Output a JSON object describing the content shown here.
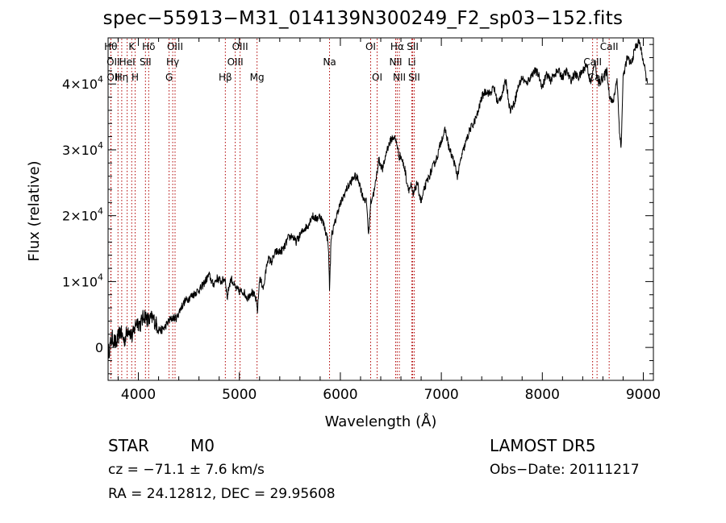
{
  "title": "spec−55913−M31_014139N300249_F2_sp03−152.fits",
  "info": {
    "class": "STAR",
    "subclass": "M0",
    "survey": "LAMOST  DR5",
    "cz": "cz = −71.1 ± 7.6 km/s",
    "obs_date": "Obs−Date: 20111217",
    "radec": "RA =  24.12812, DEC =  29.95608"
  },
  "chart_data": {
    "type": "line",
    "title": "spec−55913−M31_014139N300249_F2_sp03−152.fits",
    "xlabel": "Wavelength (Å)",
    "ylabel": "Flux (relative)",
    "xlim": [
      3700,
      9100
    ],
    "ylim": [
      -5000,
      47000
    ],
    "x_ticks": [
      4000,
      5000,
      6000,
      7000,
      8000,
      9000
    ],
    "x_tick_labels": [
      "4000",
      "5000",
      "6000",
      "7000",
      "8000",
      "9000"
    ],
    "y_ticks": [
      0,
      10000,
      20000,
      30000,
      40000
    ],
    "y_tick_labels": [
      {
        "mant": "0",
        "exp": ""
      },
      {
        "mant": "1×10",
        "exp": "4"
      },
      {
        "mant": "2×10",
        "exp": "4"
      },
      {
        "mant": "3×10",
        "exp": "4"
      },
      {
        "mant": "4×10",
        "exp": "4"
      }
    ],
    "line_color": "#000000",
    "marker_color": "#b00000",
    "series": [
      {
        "x": [
          3700,
          3740,
          3780,
          3820,
          3860,
          3900,
          3940,
          3980,
          4020,
          4060,
          4100,
          4140,
          4180,
          4220,
          4260,
          4300,
          4340,
          4380,
          4420,
          4460,
          4500,
          4540,
          4580,
          4620,
          4660,
          4700,
          4740,
          4780,
          4820,
          4860,
          4880,
          4900,
          4920,
          4960,
          5000,
          5040,
          5080,
          5120,
          5160,
          5180,
          5200,
          5240,
          5280,
          5320,
          5360,
          5400,
          5440,
          5480,
          5520,
          5560,
          5600,
          5640,
          5680,
          5720,
          5760,
          5800,
          5840,
          5880,
          5893,
          5910,
          5940,
          5980,
          6020,
          6060,
          6100,
          6140,
          6180,
          6220,
          6260,
          6280,
          6300,
          6340,
          6380,
          6420,
          6460,
          6500,
          6530,
          6560,
          6580,
          6600,
          6620,
          6640,
          6660,
          6680,
          6700,
          6720,
          6760,
          6800,
          6840,
          6880,
          6920,
          6960,
          7000,
          7040,
          7080,
          7120,
          7160,
          7200,
          7240,
          7280,
          7320,
          7360,
          7400,
          7440,
          7480,
          7520,
          7560,
          7600,
          7640,
          7680,
          7720,
          7760,
          7800,
          7840,
          7880,
          7920,
          7960,
          8000,
          8040,
          8080,
          8120,
          8160,
          8200,
          8240,
          8280,
          8320,
          8360,
          8400,
          8440,
          8480,
          8520,
          8542,
          8560,
          8600,
          8640,
          8662,
          8700,
          8740,
          8760,
          8780,
          8800,
          8840,
          8880,
          8920,
          8960,
          9000,
          9040
        ],
        "y": [
          -1000,
          1500,
          500,
          2500,
          1000,
          3000,
          1500,
          4000,
          3500,
          5000,
          4000,
          4500,
          3500,
          2500,
          3000,
          4000,
          4500,
          4500,
          6000,
          7000,
          7500,
          8000,
          8500,
          9000,
          10000,
          11000,
          9500,
          10500,
          10000,
          10500,
          7500,
          9500,
          10500,
          9000,
          8500,
          8500,
          7500,
          8500,
          7500,
          5500,
          10500,
          9000,
          13500,
          13000,
          14500,
          14500,
          15000,
          16500,
          17000,
          16000,
          17000,
          18000,
          18500,
          20000,
          19500,
          20000,
          18500,
          16000,
          9000,
          17000,
          18500,
          21000,
          22500,
          24000,
          25000,
          26000,
          25500,
          23000,
          22000,
          17000,
          22000,
          24000,
          28500,
          27000,
          30000,
          31500,
          32000,
          31000,
          29000,
          29000,
          28000,
          27000,
          25000,
          24000,
          24500,
          23000,
          25000,
          22000,
          24500,
          26000,
          27500,
          29000,
          31500,
          33000,
          30000,
          28500,
          26000,
          29000,
          31000,
          33000,
          34000,
          35500,
          38000,
          39000,
          38500,
          39500,
          37000,
          38500,
          40500,
          36000,
          37000,
          39500,
          41000,
          40000,
          41000,
          42000,
          41500,
          39500,
          41500,
          40500,
          41500,
          42000,
          41000,
          42000,
          40500,
          41500,
          41000,
          42000,
          43000,
          40000,
          43500,
          41000,
          40000,
          41000,
          42000,
          38500,
          37000,
          41000,
          34000,
          30000,
          41000,
          44000,
          43000,
          45500,
          46500,
          43500,
          40000
        ]
      }
    ],
    "line_markers": [
      {
        "label": "Hθ",
        "x": 3798,
        "row": 0,
        "ox": -9
      },
      {
        "label": "OII",
        "x": 3727,
        "row": 1,
        "ox": 3
      },
      {
        "label": "OII",
        "x": 3729,
        "row": 2,
        "ox": 3
      },
      {
        "label": "Hη",
        "x": 3835,
        "row": 2,
        "ox": 0
      },
      {
        "label": "K",
        "x": 3934,
        "row": 0,
        "ox": 0
      },
      {
        "label": "HeI",
        "x": 3889,
        "row": 1,
        "ox": 0
      },
      {
        "label": "H",
        "x": 3968,
        "row": 2,
        "ox": 0
      },
      {
        "label": "Hδ",
        "x": 4102,
        "row": 0,
        "ox": 0
      },
      {
        "label": "SII",
        "x": 4070,
        "row": 1,
        "ox": 0
      },
      {
        "label": "OIII",
        "x": 4363,
        "row": 0,
        "ox": 0
      },
      {
        "label": "Hγ",
        "x": 4340,
        "row": 1,
        "ox": 0
      },
      {
        "label": "G",
        "x": 4304,
        "row": 2,
        "ox": 0
      },
      {
        "label": "Hβ",
        "x": 4861,
        "row": 2,
        "ox": 0
      },
      {
        "label": "OIII",
        "x": 4959,
        "row": 1,
        "ox": 0
      },
      {
        "label": "OIII",
        "x": 5007,
        "row": 0,
        "ox": 0
      },
      {
        "label": "Mg",
        "x": 5175,
        "row": 2,
        "ox": 0
      },
      {
        "label": "Na",
        "x": 5893,
        "row": 1,
        "ox": 0
      },
      {
        "label": "OI",
        "x": 6300,
        "row": 0,
        "ox": 0
      },
      {
        "label": "OI",
        "x": 6364,
        "row": 2,
        "ox": 0
      },
      {
        "label": "Hα",
        "x": 6563,
        "row": 0,
        "ox": 0
      },
      {
        "label": "NII",
        "x": 6548,
        "row": 1,
        "ox": 0
      },
      {
        "label": "NII",
        "x": 6584,
        "row": 2,
        "ox": 0
      },
      {
        "label": "SII",
        "x": 6716,
        "row": 0,
        "ox": 0
      },
      {
        "label": "Li",
        "x": 6708,
        "row": 1,
        "ox": 0
      },
      {
        "label": "SII",
        "x": 6731,
        "row": 2,
        "ox": 0
      },
      {
        "label": "CaII",
        "x": 8498,
        "row": 1,
        "ox": 0
      },
      {
        "label": "CaII",
        "x": 8542,
        "row": 2,
        "ox": 0
      },
      {
        "label": "CaII",
        "x": 8662,
        "row": 0,
        "ox": 0
      }
    ]
  }
}
